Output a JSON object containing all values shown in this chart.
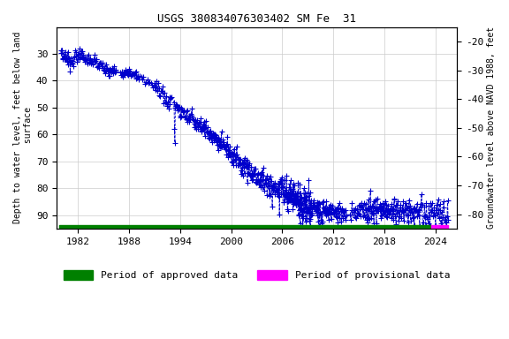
{
  "title": "USGS 380834076303402 SM Fe  31",
  "ylabel_left": "Depth to water level, feet below land\n surface",
  "ylabel_right": "Groundwater level above NAVD 1988, feet",
  "ylim_left": [
    95,
    20
  ],
  "ylim_right": [
    -85,
    -15
  ],
  "xlim": [
    1979.5,
    2026.5
  ],
  "xticks": [
    1982,
    1988,
    1994,
    2000,
    2006,
    2012,
    2018,
    2024
  ],
  "yticks_left": [
    30,
    40,
    50,
    60,
    70,
    80,
    90
  ],
  "yticks_right": [
    -20,
    -30,
    -40,
    -50,
    -60,
    -70,
    -80
  ],
  "legend_approved": "Period of approved data",
  "legend_provisional": "Period of provisional data",
  "approved_color": "#008000",
  "provisional_color": "#ff00ff",
  "data_color": "#0000cc",
  "background_color": "#ffffff",
  "grid_color": "#cccccc",
  "title_fontsize": 9,
  "label_fontsize": 7,
  "tick_fontsize": 8,
  "approved_xstart": 1979.8,
  "approved_xend": 2023.5,
  "provisional_xstart": 2023.5,
  "provisional_xend": 2025.5
}
